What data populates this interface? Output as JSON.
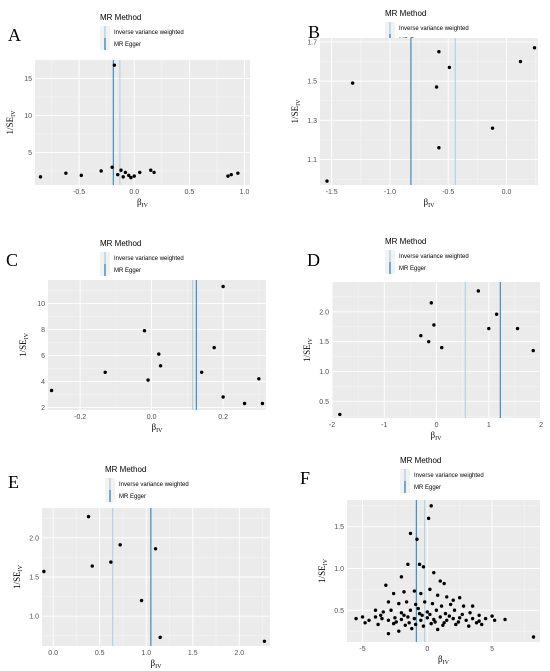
{
  "legend": {
    "title": "MR Method",
    "entries": [
      {
        "label": "Inverse variance weighted",
        "color": "#a6cee3"
      },
      {
        "label": "MR Egger",
        "color": "#1f78b4"
      }
    ]
  },
  "ylabel_main": "1/SE",
  "ylabel_sub": "IV",
  "xlabel_main": "β",
  "xlabel_sub": "IV",
  "chart_data": [
    {
      "panel": "A",
      "type": "scatter",
      "xlim": [
        -0.9,
        1.05
      ],
      "ylim": [
        0.6,
        17.5
      ],
      "xticks": [
        -0.5,
        0,
        0.5,
        1
      ],
      "xtick_labels": [
        "-0.5",
        "0.0",
        "0.5",
        "1.0"
      ],
      "yticks": [
        5,
        10,
        15
      ],
      "ytick_labels": [
        "5",
        "10",
        "15"
      ],
      "ivw": -0.13,
      "egger": -0.19,
      "points": [
        [
          -0.18,
          16.8
        ],
        [
          -0.85,
          1.7
        ],
        [
          -0.62,
          2.2
        ],
        [
          -0.48,
          1.9
        ],
        [
          -0.3,
          2.5
        ],
        [
          -0.2,
          3.0
        ],
        [
          -0.15,
          2.0
        ],
        [
          -0.12,
          2.6
        ],
        [
          -0.1,
          1.7
        ],
        [
          -0.08,
          2.3
        ],
        [
          -0.05,
          1.9
        ],
        [
          -0.03,
          1.6
        ],
        [
          0.0,
          1.8
        ],
        [
          0.05,
          2.3
        ],
        [
          0.15,
          2.6
        ],
        [
          0.18,
          2.3
        ],
        [
          0.85,
          1.8
        ],
        [
          0.88,
          2.0
        ],
        [
          0.94,
          2.2
        ]
      ]
    },
    {
      "panel": "B",
      "type": "scatter",
      "xlim": [
        -1.6,
        0.27
      ],
      "ylim": [
        0.97,
        1.72
      ],
      "xticks": [
        -1.5,
        -1,
        -0.5,
        0
      ],
      "xtick_labels": [
        "-1.5",
        "-1.0",
        "-0.5",
        "0.0"
      ],
      "yticks": [
        1.1,
        1.3,
        1.5,
        1.7
      ],
      "ytick_labels": [
        "1.1",
        "1.3",
        "1.5",
        "1.7"
      ],
      "ivw": -0.44,
      "egger": -0.82,
      "points": [
        [
          -1.54,
          0.99
        ],
        [
          -1.32,
          1.49
        ],
        [
          -0.58,
          1.65
        ],
        [
          -0.6,
          1.47
        ],
        [
          -0.49,
          1.57
        ],
        [
          -0.58,
          1.16
        ],
        [
          -0.12,
          1.26
        ],
        [
          0.12,
          1.6
        ],
        [
          0.24,
          1.67
        ]
      ]
    },
    {
      "panel": "C",
      "type": "scatter",
      "xlim": [
        -0.29,
        0.32
      ],
      "ylim": [
        1.8,
        11.8
      ],
      "xticks": [
        -0.2,
        0,
        0.2
      ],
      "xtick_labels": [
        "-0.2",
        "0.0",
        "0.2"
      ],
      "yticks": [
        2,
        4,
        6,
        8,
        10
      ],
      "ytick_labels": [
        "2",
        "4",
        "6",
        "8",
        "10"
      ],
      "ivw": 0.115,
      "egger": 0.125,
      "points": [
        [
          -0.28,
          3.3
        ],
        [
          -0.13,
          4.7
        ],
        [
          -0.02,
          7.9
        ],
        [
          -0.01,
          4.1
        ],
        [
          0.02,
          6.1
        ],
        [
          0.025,
          5.2
        ],
        [
          0.14,
          4.7
        ],
        [
          0.175,
          6.6
        ],
        [
          0.2,
          11.3
        ],
        [
          0.2,
          2.8
        ],
        [
          0.26,
          2.3
        ],
        [
          0.3,
          4.2
        ],
        [
          0.31,
          2.3
        ]
      ]
    },
    {
      "panel": "D",
      "type": "scatter",
      "xlim": [
        -2.0,
        1.98
      ],
      "ylim": [
        0.22,
        2.5
      ],
      "xticks": [
        -2,
        -1,
        0,
        1,
        2
      ],
      "xtick_labels": [
        "-2",
        "-1",
        "0",
        "1",
        "2"
      ],
      "yticks": [
        0.5,
        1.0,
        1.5,
        2.0
      ],
      "ytick_labels": [
        "0.5",
        "1.0",
        "1.5",
        "2.0"
      ],
      "ivw": 0.55,
      "egger": 1.22,
      "points": [
        [
          -1.85,
          0.28
        ],
        [
          -0.3,
          1.6
        ],
        [
          -0.15,
          1.5
        ],
        [
          -0.1,
          2.15
        ],
        [
          -0.05,
          1.78
        ],
        [
          0.1,
          1.4
        ],
        [
          0.8,
          2.35
        ],
        [
          1.0,
          1.72
        ],
        [
          1.15,
          1.96
        ],
        [
          1.55,
          1.72
        ],
        [
          1.85,
          1.35
        ]
      ]
    },
    {
      "panel": "E",
      "type": "scatter",
      "xlim": [
        -0.12,
        2.33
      ],
      "ylim": [
        0.62,
        2.38
      ],
      "xticks": [
        0,
        0.5,
        1,
        1.5,
        2
      ],
      "xtick_labels": [
        "0.0",
        "0.5",
        "1.0",
        "1.5",
        "2.0"
      ],
      "yticks": [
        1.0,
        1.5,
        2.0
      ],
      "ytick_labels": [
        "1.0",
        "1.5",
        "2.0"
      ],
      "ivw": 0.64,
      "egger": 1.05,
      "points": [
        [
          -0.1,
          1.57
        ],
        [
          0.38,
          2.27
        ],
        [
          0.42,
          1.64
        ],
        [
          0.62,
          1.69
        ],
        [
          0.72,
          1.91
        ],
        [
          0.95,
          1.2
        ],
        [
          1.1,
          1.86
        ],
        [
          1.15,
          0.73
        ],
        [
          2.27,
          0.68
        ]
      ]
    },
    {
      "panel": "F",
      "type": "scatter",
      "xlim": [
        -6.2,
        8.7
      ],
      "ylim": [
        0.12,
        1.82
      ],
      "xticks": [
        -5,
        0,
        5
      ],
      "xtick_labels": [
        "-5",
        "0",
        "5"
      ],
      "yticks": [
        0.5,
        1.0,
        1.5
      ],
      "ytick_labels": [
        "0.5",
        "1.0",
        "1.5"
      ],
      "ivw": -0.2,
      "egger": -0.85,
      "points": [
        [
          0.3,
          1.75
        ],
        [
          0.1,
          1.6
        ],
        [
          -1.3,
          1.42
        ],
        [
          -0.8,
          1.35
        ],
        [
          -0.6,
          1.05
        ],
        [
          -0.3,
          1.02
        ],
        [
          0.5,
          0.95
        ],
        [
          -1.5,
          1.05
        ],
        [
          -2.0,
          0.9
        ],
        [
          1.0,
          0.85
        ],
        [
          1.3,
          0.82
        ],
        [
          -3.2,
          0.8
        ],
        [
          -2.6,
          0.7
        ],
        [
          -1.8,
          0.72
        ],
        [
          -1.0,
          0.73
        ],
        [
          -0.5,
          0.7
        ],
        [
          0.2,
          0.75
        ],
        [
          0.8,
          0.68
        ],
        [
          1.5,
          0.66
        ],
        [
          2.0,
          0.62
        ],
        [
          2.5,
          0.65
        ],
        [
          -3.0,
          0.6
        ],
        [
          -2.2,
          0.58
        ],
        [
          -1.6,
          0.6
        ],
        [
          -0.9,
          0.57
        ],
        [
          -0.2,
          0.6
        ],
        [
          0.4,
          0.58
        ],
        [
          1.1,
          0.55
        ],
        [
          1.8,
          0.57
        ],
        [
          2.8,
          0.55
        ],
        [
          3.5,
          0.55
        ],
        [
          -4.0,
          0.5
        ],
        [
          -3.4,
          0.48
        ],
        [
          -2.8,
          0.5
        ],
        [
          -2.0,
          0.47
        ],
        [
          -1.3,
          0.5
        ],
        [
          -0.7,
          0.52
        ],
        [
          0.0,
          0.48
        ],
        [
          0.7,
          0.5
        ],
        [
          1.4,
          0.46
        ],
        [
          2.1,
          0.5
        ],
        [
          2.7,
          0.45
        ],
        [
          3.3,
          0.47
        ],
        [
          4.0,
          0.44
        ],
        [
          -5.5,
          0.4
        ],
        [
          -5.0,
          0.42
        ],
        [
          -4.5,
          0.38
        ],
        [
          -4.0,
          0.42
        ],
        [
          -3.5,
          0.4
        ],
        [
          -3.0,
          0.38
        ],
        [
          -2.5,
          0.41
        ],
        [
          -2.0,
          0.39
        ],
        [
          -1.5,
          0.42
        ],
        [
          -1.0,
          0.4
        ],
        [
          -0.5,
          0.38
        ],
        [
          0.0,
          0.41
        ],
        [
          0.5,
          0.39
        ],
        [
          1.0,
          0.42
        ],
        [
          1.5,
          0.38
        ],
        [
          2.0,
          0.4
        ],
        [
          2.5,
          0.41
        ],
        [
          3.0,
          0.38
        ],
        [
          3.5,
          0.4
        ],
        [
          4.0,
          0.37
        ],
        [
          4.5,
          0.4
        ],
        [
          5.2,
          0.38
        ],
        [
          6.0,
          0.39
        ],
        [
          -4.8,
          0.35
        ],
        [
          -3.8,
          0.33
        ],
        [
          -2.6,
          0.34
        ],
        [
          -1.7,
          0.32
        ],
        [
          -0.9,
          0.33
        ],
        [
          -0.3,
          0.31
        ],
        [
          0.3,
          0.34
        ],
        [
          1.2,
          0.32
        ],
        [
          2.2,
          0.33
        ],
        [
          3.2,
          0.31
        ],
        [
          4.2,
          0.33
        ],
        [
          -3.0,
          0.22
        ],
        [
          -1.2,
          0.28
        ],
        [
          0.8,
          0.27
        ],
        [
          -2.2,
          0.25
        ],
        [
          8.2,
          0.18
        ],
        [
          -0.4,
          0.44
        ],
        [
          0.2,
          0.45
        ],
        [
          -1.8,
          0.44
        ],
        [
          1.7,
          0.43
        ],
        [
          2.4,
          0.36
        ],
        [
          -2.4,
          0.36
        ],
        [
          -3.6,
          0.44
        ],
        [
          0.6,
          0.36
        ],
        [
          -0.6,
          0.46
        ],
        [
          1.3,
          0.35
        ],
        [
          -1.4,
          0.35
        ],
        [
          3.8,
          0.35
        ],
        [
          5.0,
          0.43
        ]
      ]
    }
  ]
}
